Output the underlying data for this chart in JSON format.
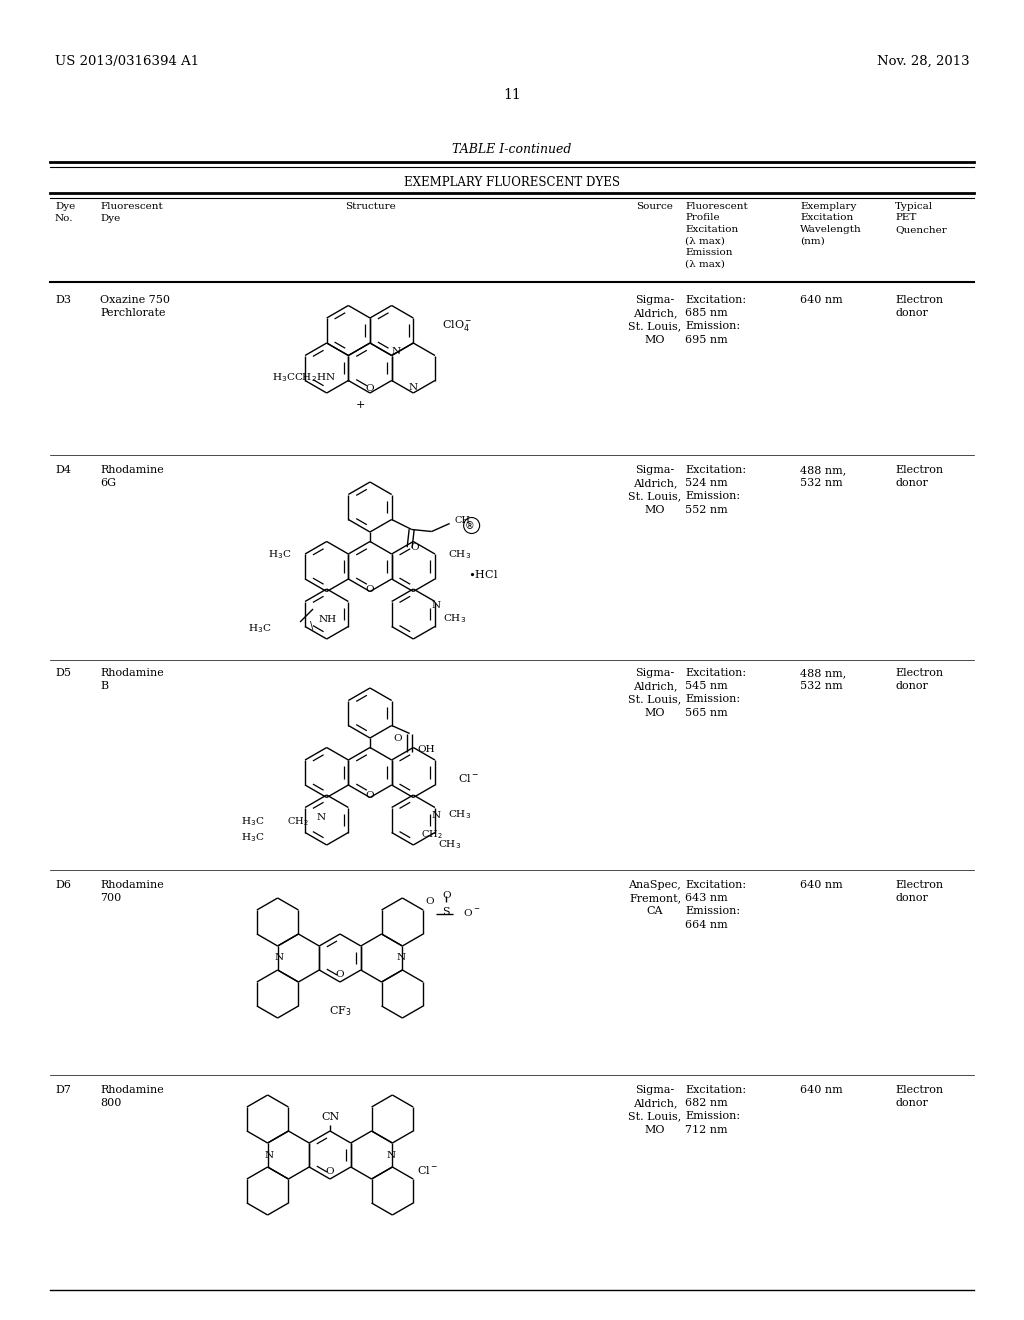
{
  "page_number": "11",
  "patent_number": "US 2013/0316394 A1",
  "patent_date": "Nov. 28, 2013",
  "table_title": "TABLE I-continued",
  "table_subtitle": "EXEMPLARY FLUORESCENT DYES",
  "bg_color": "#ffffff",
  "rows": [
    {
      "dye_no": "D3",
      "dye_name": "Oxazine 750\nPerchlorate",
      "source": "Sigma-\nAldrich,\nSt. Louis,\nMO",
      "profile": "Excitation:\n685 nm\nEmission:\n695 nm",
      "exemplary_wavelength": "640 nm",
      "pet_quencher": "Electron\ndonor"
    },
    {
      "dye_no": "D4",
      "dye_name": "Rhodamine\n6G",
      "source": "Sigma-\nAldrich,\nSt. Louis,\nMO",
      "profile": "Excitation:\n524 nm\nEmission:\n552 nm",
      "exemplary_wavelength": "488 nm,\n532 nm",
      "pet_quencher": "Electron\ndonor"
    },
    {
      "dye_no": "D5",
      "dye_name": "Rhodamine\nB",
      "source": "Sigma-\nAldrich,\nSt. Louis,\nMO",
      "profile": "Excitation:\n545 nm\nEmission:\n565 nm",
      "exemplary_wavelength": "488 nm,\n532 nm",
      "pet_quencher": "Electron\ndonor"
    },
    {
      "dye_no": "D6",
      "dye_name": "Rhodamine\n700",
      "source": "AnaSpec,\nFremont,\nCA",
      "profile": "Excitation:\n643 nm\nEmission:\n664 nm",
      "exemplary_wavelength": "640 nm",
      "pet_quencher": "Electron\ndonor"
    },
    {
      "dye_no": "D7",
      "dye_name": "Rhodamine\n800",
      "source": "Sigma-\nAldrich,\nSt. Louis,\nMO",
      "profile": "Excitation:\n682 nm\nEmission:\n712 nm",
      "exemplary_wavelength": "640 nm",
      "pet_quencher": "Electron\ndonor"
    }
  ]
}
